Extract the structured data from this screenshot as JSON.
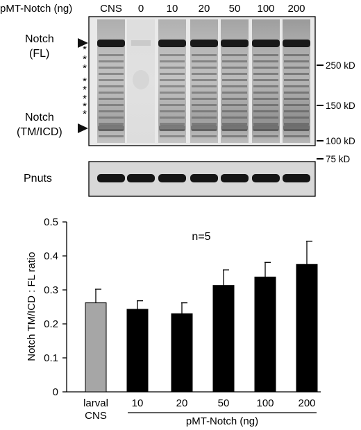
{
  "blot": {
    "lane_header_label": "pMT-Notch (ng)",
    "lanes": [
      "CNS",
      "0",
      "10",
      "20",
      "50",
      "100",
      "200"
    ],
    "notch_fl_label_line1": "Notch",
    "notch_fl_label_line2": "(FL)",
    "notch_tmicd_label_line1": "Notch",
    "notch_tmicd_label_line2": "(TM/ICD)",
    "pnuts_label": "Pnuts",
    "asterisk": "*",
    "size_markers": [
      "250 kD",
      "150 kD",
      "100 kD",
      "75 kD"
    ]
  },
  "chart_data": {
    "type": "bar",
    "categories": [
      "larval CNS",
      "10",
      "20",
      "50",
      "100",
      "200"
    ],
    "category_label_lines": [
      [
        "larval",
        "CNS"
      ],
      [
        "10"
      ],
      [
        "20"
      ],
      [
        "50"
      ],
      [
        "100"
      ],
      [
        "200"
      ]
    ],
    "values": [
      0.262,
      0.243,
      0.23,
      0.313,
      0.338,
      0.375
    ],
    "errors": [
      0.04,
      0.025,
      0.032,
      0.046,
      0.043,
      0.068
    ],
    "bar_colors": [
      "#a6a6a6",
      "#000000",
      "#000000",
      "#000000",
      "#000000",
      "#000000"
    ],
    "ylabel": "Notch TM/ICD : FL ratio",
    "xlabel": "pMT-Notch (ng)",
    "annotation": "n=5",
    "ylim": [
      0,
      0.5
    ],
    "yticks": [
      "0",
      "0.1",
      "0.2",
      "0.3",
      "0.4",
      "0.5"
    ],
    "grid": false
  }
}
